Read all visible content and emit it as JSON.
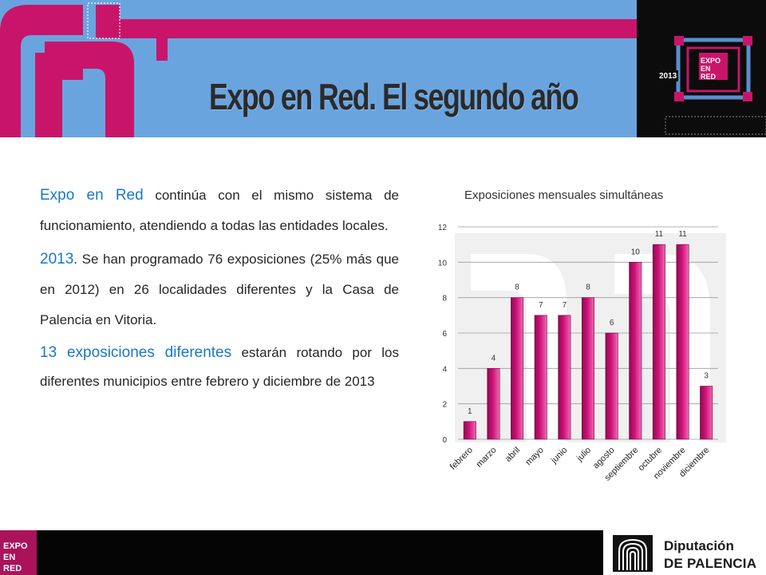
{
  "header": {
    "title": "Expo en Red. El segundo año",
    "logo": {
      "year": "2013",
      "text": [
        "EXPO",
        "EN",
        "RED"
      ]
    },
    "colors": {
      "blue": "#6aa4df",
      "magenta": "#c8156a",
      "dark": "#0c0c0c"
    }
  },
  "content": {
    "p1": {
      "highlight": "Expo en Red",
      "text": " continúa con el mismo sistema de funcionamiento, atendiendo a todas las entidades locales."
    },
    "p2": {
      "highlight": "2013",
      "text": ". Se han programado 76 exposiciones (25% más que en 2012) en 26 localidades diferentes y la Casa de Palencia en Vitoria."
    },
    "p3": {
      "highlight": "13 exposiciones diferentes",
      "text": " estarán rotando por los diferentes municipios entre febrero y diciembre de 2013"
    },
    "highlight_color": "#1878c8"
  },
  "chart_data": {
    "type": "bar",
    "title": "Exposiciones mensuales simultáneas",
    "categories": [
      "febrero",
      "marzo",
      "abril",
      "mayo",
      "junio",
      "julio",
      "agosto",
      "septiembre",
      "octubre",
      "noviembre",
      "diciembre"
    ],
    "values": [
      1,
      4,
      8,
      7,
      7,
      8,
      6,
      10,
      11,
      11,
      3
    ],
    "ylim": [
      0,
      12
    ],
    "yticks": [
      0,
      2,
      4,
      6,
      8,
      10,
      12
    ],
    "xlabel": "",
    "ylabel": "",
    "grid": true,
    "legend": "none",
    "bar_color": "#d0127a"
  },
  "footer": {
    "logo_text": [
      "EXPO",
      "EN",
      "RED"
    ],
    "org_name": [
      "Diputación",
      "DE PALENCIA"
    ]
  }
}
